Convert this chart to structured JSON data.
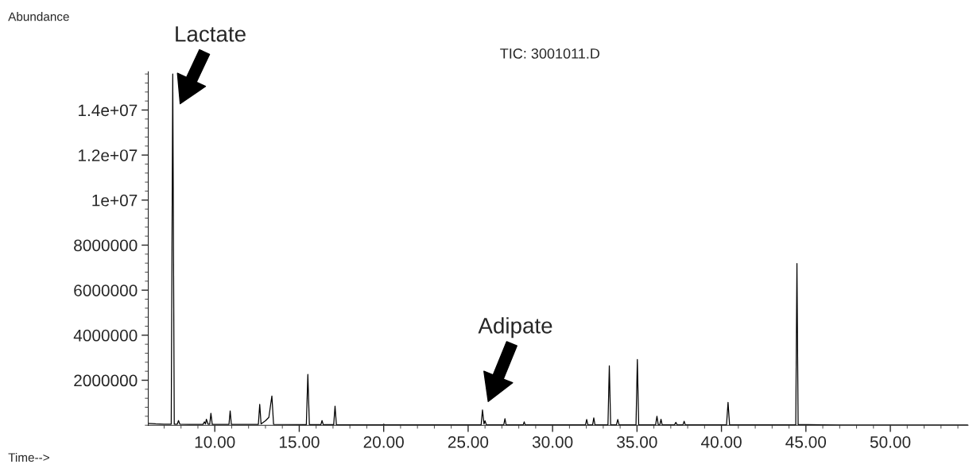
{
  "chart_data": {
    "type": "line",
    "title": "TIC: 3001011.D",
    "xlabel": "Time-->",
    "ylabel": "Abundance",
    "x": [
      6.06,
      6.5,
      7.0,
      7.42,
      7.51,
      7.6,
      7.78,
      7.85,
      7.93,
      8.5,
      9.3,
      9.39,
      9.45,
      9.5,
      9.6,
      9.7,
      9.77,
      9.85,
      10.5,
      10.84,
      10.91,
      10.98,
      12.0,
      12.58,
      12.66,
      12.74,
      13.0,
      13.2,
      13.38,
      13.48,
      15.42,
      15.51,
      15.6,
      16.28,
      16.35,
      16.42,
      17.04,
      17.12,
      17.2,
      19.95,
      20.0,
      20.05,
      25.77,
      25.85,
      25.94,
      26.0,
      26.08,
      27.11,
      27.18,
      27.25,
      28.26,
      28.32,
      28.38,
      31.95,
      32.02,
      32.09,
      32.37,
      32.44,
      32.51,
      33.28,
      33.36,
      33.44,
      33.78,
      33.86,
      33.94,
      34.94,
      35.02,
      35.1,
      36.1,
      36.18,
      36.26,
      36.35,
      36.42,
      36.49,
      37.22,
      37.3,
      37.38,
      37.72,
      37.79,
      37.86,
      40.3,
      40.39,
      40.48,
      44.4,
      44.47,
      44.54,
      46.0,
      47.0,
      50.0,
      54.6
    ],
    "series": [
      {
        "color": "#000000",
        "values": [
          80000,
          60000,
          50000,
          50000,
          15600000,
          50000,
          50000,
          210000,
          50000,
          40000,
          40000,
          150000,
          60000,
          270000,
          50000,
          50000,
          530000,
          40000,
          40000,
          40000,
          640000,
          40000,
          40000,
          40000,
          930000,
          60000,
          200000,
          350000,
          1300000,
          40000,
          30000,
          2260000,
          30000,
          30000,
          210000,
          30000,
          30000,
          850000,
          30000,
          20000,
          50000,
          20000,
          20000,
          680000,
          60000,
          200000,
          20000,
          20000,
          290000,
          20000,
          20000,
          150000,
          20000,
          20000,
          260000,
          20000,
          20000,
          330000,
          20000,
          20000,
          2640000,
          20000,
          20000,
          260000,
          20000,
          20000,
          2920000,
          20000,
          20000,
          400000,
          20000,
          20000,
          270000,
          20000,
          20000,
          130000,
          20000,
          20000,
          180000,
          20000,
          20000,
          1020000,
          20000,
          20000,
          7180000,
          30000,
          20000,
          10000,
          10000,
          10000
        ]
      }
    ],
    "xlim": [
      6.06,
      54.6
    ],
    "ylim": [
      0,
      15700000
    ],
    "xticks": [
      {
        "value": 10,
        "label": "10.00"
      },
      {
        "value": 15,
        "label": "15.00"
      },
      {
        "value": 20,
        "label": "20.00"
      },
      {
        "value": 25,
        "label": "25.00"
      },
      {
        "value": 30,
        "label": "30.00"
      },
      {
        "value": 35,
        "label": "35.00"
      },
      {
        "value": 40,
        "label": "40.00"
      },
      {
        "value": 45,
        "label": "45.00"
      },
      {
        "value": 50,
        "label": "50.00"
      }
    ],
    "yticks": [
      2000000,
      4000000,
      6000000,
      8000000,
      {
        "value": 10000000,
        "label": "1e+07"
      },
      {
        "value": 12000000,
        "label": "1.2e+07"
      },
      {
        "value": 14000000,
        "label": "1.4e+07"
      }
    ],
    "annotations": [
      "Lactate",
      "Adipate"
    ],
    "grid": false,
    "legend": false,
    "marker": "none",
    "line_style": "solid"
  }
}
